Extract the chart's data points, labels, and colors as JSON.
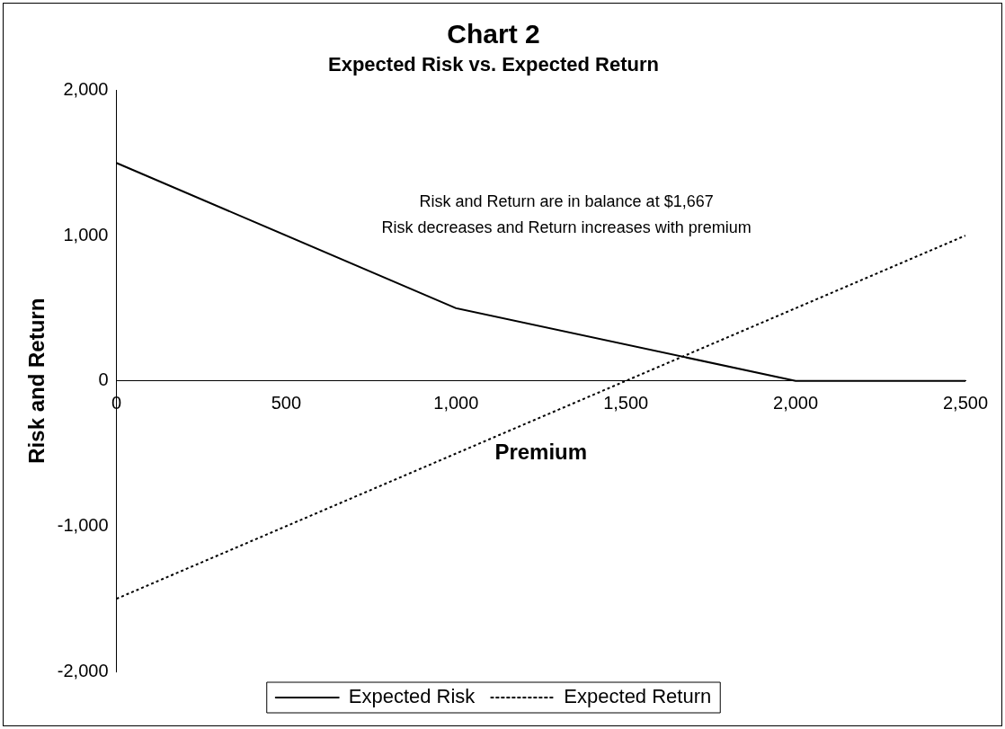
{
  "chart_data": {
    "type": "line",
    "title": "Chart 2",
    "subtitle": "Expected Risk vs. Expected Return",
    "xlabel": "Premium",
    "ylabel": "Risk and Return",
    "x": [
      0,
      1000,
      2000,
      2500
    ],
    "series": [
      {
        "name": "Expected Risk",
        "color": "#000000",
        "line_style": "solid",
        "values": [
          1500,
          500,
          0,
          0
        ]
      },
      {
        "name": "Expected Return",
        "color": "#000000",
        "line_style": "dotted",
        "values": [
          -1500,
          -500,
          500,
          1000
        ]
      }
    ],
    "xlim": [
      0,
      2500
    ],
    "xticks": [
      0,
      {
        "value": 500,
        "label": "500"
      },
      {
        "value": 1000,
        "label": "1,000"
      },
      {
        "value": 1500,
        "label": "1,500"
      },
      {
        "value": 2000,
        "label": "2,000"
      },
      {
        "value": 2500,
        "label": "2,500"
      }
    ],
    "ylim": [
      -2000,
      2000
    ],
    "yticks": [
      {
        "value": -2000,
        "label": "-2,000"
      },
      {
        "value": -1000,
        "label": "-1,000"
      },
      0,
      {
        "value": 1000,
        "label": "1,000"
      },
      {
        "value": 2000,
        "label": "2,000"
      }
    ],
    "annotations": [
      "Risk and Return are in balance at $1,667",
      "Risk decreases and Return increases with premium"
    ],
    "grid": false,
    "legend": "bottom",
    "marker": "none"
  }
}
